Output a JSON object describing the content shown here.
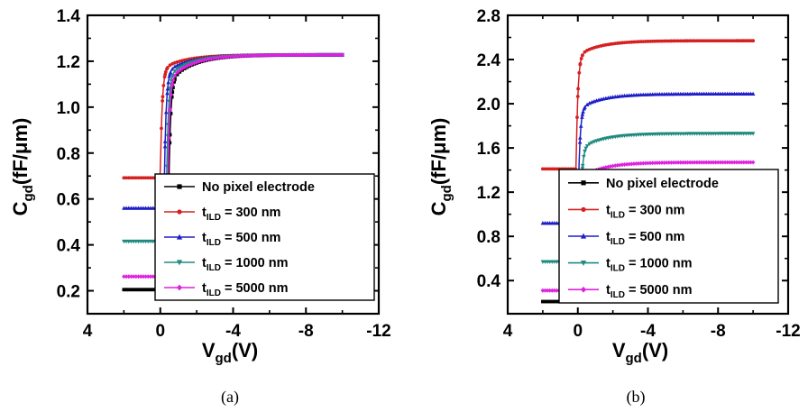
{
  "chart_data": [
    {
      "type": "line",
      "caption": "(a)",
      "xlabel": {
        "main": "V",
        "sub": "gd",
        "unit": "(V)"
      },
      "ylabel": {
        "main": "C",
        "sub": "gd",
        "unit": "(fF/μm)"
      },
      "xlim": [
        4,
        -12
      ],
      "ylim": [
        0.1,
        1.4
      ],
      "xticks": [
        "4",
        "0",
        "-4",
        "-8",
        "-12"
      ],
      "yticks": [
        "0.2",
        "0.4",
        "0.6",
        "0.8",
        "1.0",
        "1.2",
        "1.4"
      ],
      "legend_position": "bottom-right",
      "series": [
        {
          "name": "No pixel electrode",
          "color": "#000000",
          "marker": "square",
          "y_low": 0.205,
          "y_high": 1.228,
          "x_step": -0.4
        },
        {
          "name": "t_ILD = 300 nm",
          "color": "#d62020",
          "marker": "circle",
          "y_low": 0.692,
          "y_high": 1.228,
          "x_step": 0.0
        },
        {
          "name": "t_ILD = 500 nm",
          "color": "#1f1fc8",
          "marker": "triangle-up",
          "y_low": 0.56,
          "y_high": 1.228,
          "x_step": -0.2
        },
        {
          "name": "t_ILD = 1000 nm",
          "color": "#1f8a80",
          "marker": "triangle-down",
          "y_low": 0.415,
          "y_high": 1.228,
          "x_step": -0.3
        },
        {
          "name": "t_ILD = 5000 nm",
          "color": "#e020e0",
          "marker": "diamond",
          "y_low": 0.262,
          "y_high": 1.228,
          "x_step": -0.35
        }
      ],
      "x_range": [
        2,
        -10
      ]
    },
    {
      "type": "line",
      "caption": "(b)",
      "xlabel": {
        "main": "V",
        "sub": "gd",
        "unit": "(V)"
      },
      "ylabel": {
        "main": "C",
        "sub": "gd",
        "unit": "(fF/μm)"
      },
      "xlim": [
        4,
        -12
      ],
      "ylim": [
        0.1,
        2.8
      ],
      "xticks": [
        "4",
        "0",
        "-4",
        "-8",
        "-12"
      ],
      "yticks": [
        "0.4",
        "0.8",
        "1.2",
        "1.6",
        "2.0",
        "2.4",
        "2.8"
      ],
      "legend_position": "bottom-right",
      "series": [
        {
          "name": "No pixel electrode",
          "color": "#000000",
          "marker": "square",
          "y_low": 0.21,
          "y_high": 1.37,
          "x_step": -0.25
        },
        {
          "name": "t_ILD = 300 nm",
          "color": "#d62020",
          "marker": "circle",
          "y_low": 1.41,
          "y_high": 2.57,
          "x_step": 0.1
        },
        {
          "name": "t_ILD = 500 nm",
          "color": "#1f1fc8",
          "marker": "triangle-up",
          "y_low": 0.92,
          "y_high": 2.09,
          "x_step": 0.0
        },
        {
          "name": "t_ILD = 1000 nm",
          "color": "#1f8a80",
          "marker": "triangle-down",
          "y_low": 0.57,
          "y_high": 1.73,
          "x_step": -0.1
        },
        {
          "name": "t_ILD = 5000 nm",
          "color": "#e020e0",
          "marker": "diamond",
          "y_low": 0.31,
          "y_high": 1.47,
          "x_step": -0.15
        }
      ],
      "x_range": [
        2,
        -10
      ]
    }
  ]
}
